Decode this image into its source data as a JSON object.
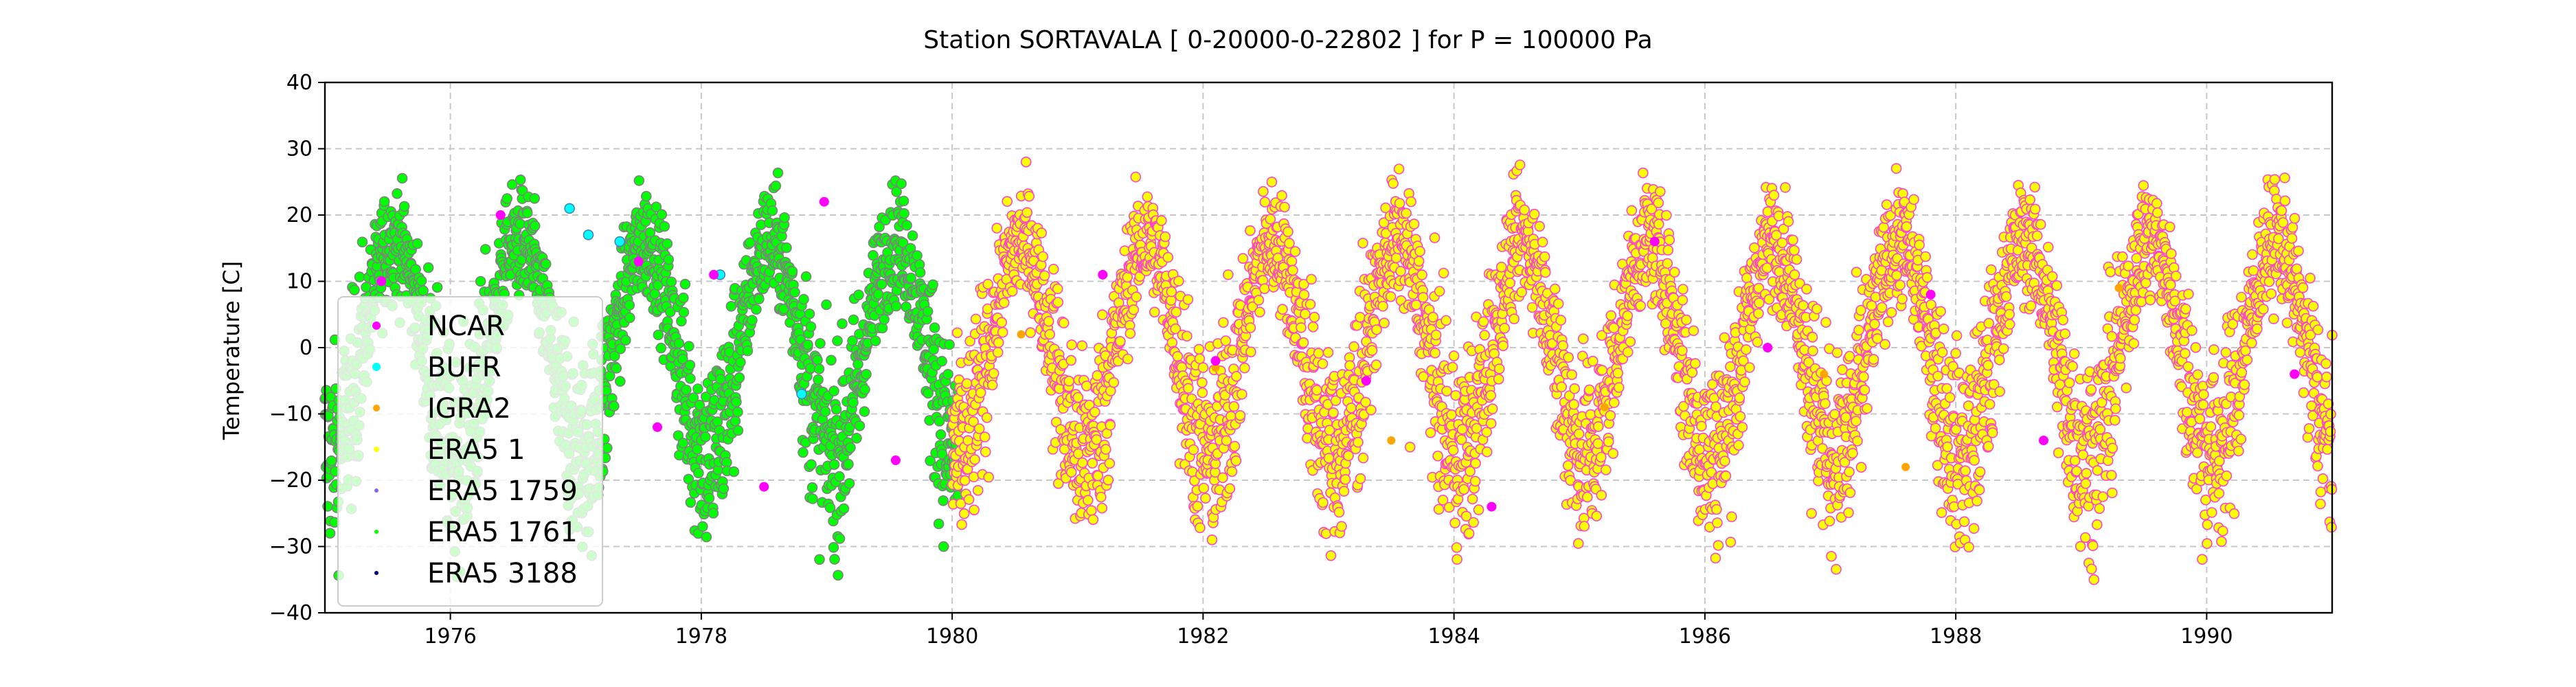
{
  "chart_data": {
    "type": "scatter",
    "title": "Station  SORTAVALA [ 0-20000-0-22802 ]  for P = 100000 Pa",
    "xlabel": "",
    "ylabel": "Temperature [C]",
    "xlim": [
      1975.0,
      1991.0
    ],
    "ylim": [
      -40,
      40
    ],
    "xticks": [
      1976,
      1978,
      1980,
      1982,
      1984,
      1986,
      1988,
      1990
    ],
    "xtick_labels": [
      "1976",
      "1978",
      "1980",
      "1982",
      "1984",
      "1986",
      "1988",
      "1990"
    ],
    "yticks": [
      -40,
      -30,
      -20,
      -10,
      0,
      10,
      20,
      30,
      40
    ],
    "ytick_labels": [
      "−40",
      "−30",
      "−20",
      "−10",
      "0",
      "10",
      "20",
      "30",
      "40"
    ],
    "grid": true,
    "legend_position": "lower-left",
    "series": [
      {
        "name": "NCAR",
        "color": "#ff00ff",
        "points": [
          [
            1975.45,
            10
          ],
          [
            1976.4,
            20
          ],
          [
            1977.5,
            13
          ],
          [
            1977.65,
            -12
          ],
          [
            1978.1,
            11
          ],
          [
            1978.5,
            -21
          ],
          [
            1978.98,
            22
          ],
          [
            1979.55,
            -17
          ],
          [
            1981.2,
            11
          ],
          [
            1982.1,
            -2
          ],
          [
            1983.3,
            -5
          ],
          [
            1984.3,
            -24
          ],
          [
            1985.6,
            16
          ],
          [
            1986.5,
            0
          ],
          [
            1987.8,
            8
          ],
          [
            1988.7,
            -14
          ],
          [
            1990.7,
            -4
          ]
        ]
      },
      {
        "name": "BUFR",
        "color": "#00ffff",
        "points": [
          [
            1976.95,
            21
          ],
          [
            1977.1,
            17
          ],
          [
            1978.15,
            11
          ],
          [
            1978.8,
            -7
          ],
          [
            1977.35,
            16
          ]
        ]
      },
      {
        "name": "IGRA2",
        "color": "#ffa500",
        "points": [
          [
            1980.55,
            2
          ],
          [
            1982.1,
            -3
          ],
          [
            1983.5,
            -14
          ],
          [
            1985.2,
            -9
          ],
          [
            1986.95,
            -4
          ],
          [
            1987.6,
            -18
          ],
          [
            1989.3,
            9
          ]
        ]
      },
      {
        "name": "ERA5 1",
        "color": "#ffff00",
        "seasonal": {
          "x_start": 1980.0,
          "x_end": 1991.0,
          "mean": 0,
          "amplitude": 16,
          "peak_phase": 0.55,
          "noise": 6
        },
        "points": [
          [
            1982.2,
            11
          ],
          [
            1983.65,
            -15
          ],
          [
            1986.85,
            -25
          ]
        ]
      },
      {
        "name": "ERA5 1759",
        "color": "#7b68ee",
        "points": []
      },
      {
        "name": "ERA5 1761",
        "color": "#00ff00",
        "seasonal": {
          "x_start": 1975.0,
          "x_end": 1980.05,
          "mean": 0,
          "amplitude": 16,
          "peak_phase": 0.55,
          "noise": 6
        },
        "points": []
      },
      {
        "name": "ERA5 3188",
        "color": "#00008b",
        "points": []
      }
    ]
  }
}
